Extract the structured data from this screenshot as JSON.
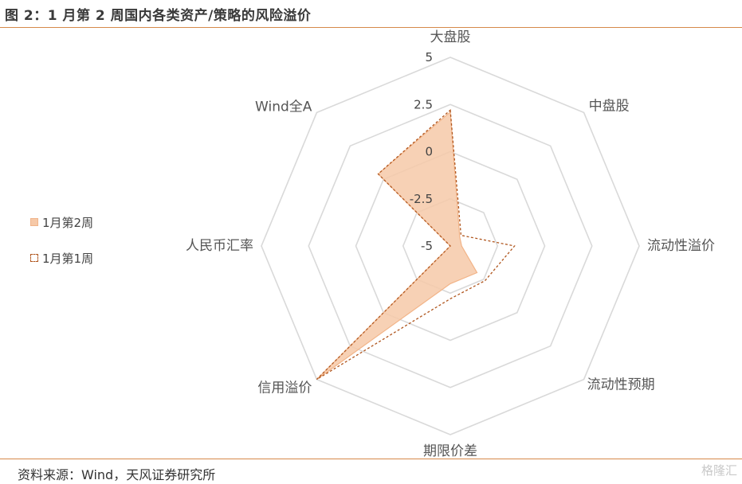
{
  "title": "图 2：1 月第 2 周国内各类资产/策略的风险溢价",
  "source": "资料来源：Wind，天风证券研究所",
  "watermark": "格隆汇",
  "colors": {
    "week2_fill": "#f6c9a8",
    "week2_stroke": "#f2b488",
    "week1_stroke": "#b0561e",
    "grid": "#d9d9d9",
    "rule": "#d6894a"
  },
  "chart_data": {
    "type": "radar",
    "categories": [
      "大盘股",
      "中盘股",
      "流动性溢价",
      "流动性预期",
      "期限价差",
      "信用溢价",
      "人民币汇率",
      "Wind全A"
    ],
    "rlim": [
      -5,
      5
    ],
    "ticks": [
      -5,
      -2.5,
      0,
      2.5,
      5
    ],
    "tick_labels": [
      "-5",
      "-2.5",
      "0",
      "2.5",
      "5"
    ],
    "series": [
      {
        "name": "1月第2周",
        "style": "filled",
        "values": [
          2.1,
          -4.3,
          -4.4,
          -3.0,
          -3.0,
          5.0,
          -5.0,
          0.4
        ]
      },
      {
        "name": "1月第1周",
        "style": "dashed",
        "values": [
          2.2,
          -4.2,
          -1.6,
          -2.4,
          -2.2,
          5.0,
          -5.0,
          0.4
        ]
      }
    ],
    "legend_position": "left"
  }
}
